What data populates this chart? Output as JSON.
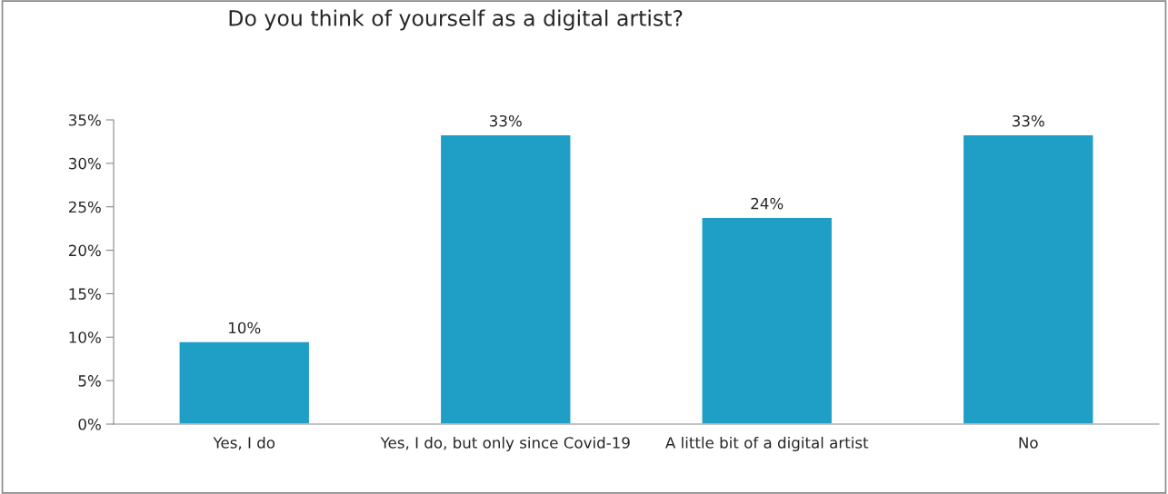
{
  "chart_data": {
    "type": "bar",
    "title": "Do you think of yourself as a digital artist?",
    "categories": [
      "Yes, I do",
      "Yes, I do, but only since Covid-19",
      "A little bit of a digital artist",
      "No"
    ],
    "values": [
      9.5,
      33.3,
      23.8,
      33.3
    ],
    "value_labels": [
      "10%",
      "33%",
      "24%",
      "33%"
    ],
    "color": "#209fc6",
    "ylim": [
      0,
      35
    ],
    "yticks": [
      {
        "value": 0,
        "label": "0%"
      },
      {
        "value": 5,
        "label": "5%"
      },
      {
        "value": 10,
        "label": "10%"
      },
      {
        "value": 15,
        "label": "15%"
      },
      {
        "value": 20,
        "label": "20%"
      },
      {
        "value": 25,
        "label": "25%"
      },
      {
        "value": 30,
        "label": "30%"
      },
      {
        "value": 35,
        "label": "35%"
      }
    ],
    "grid": false,
    "legend": false
  }
}
